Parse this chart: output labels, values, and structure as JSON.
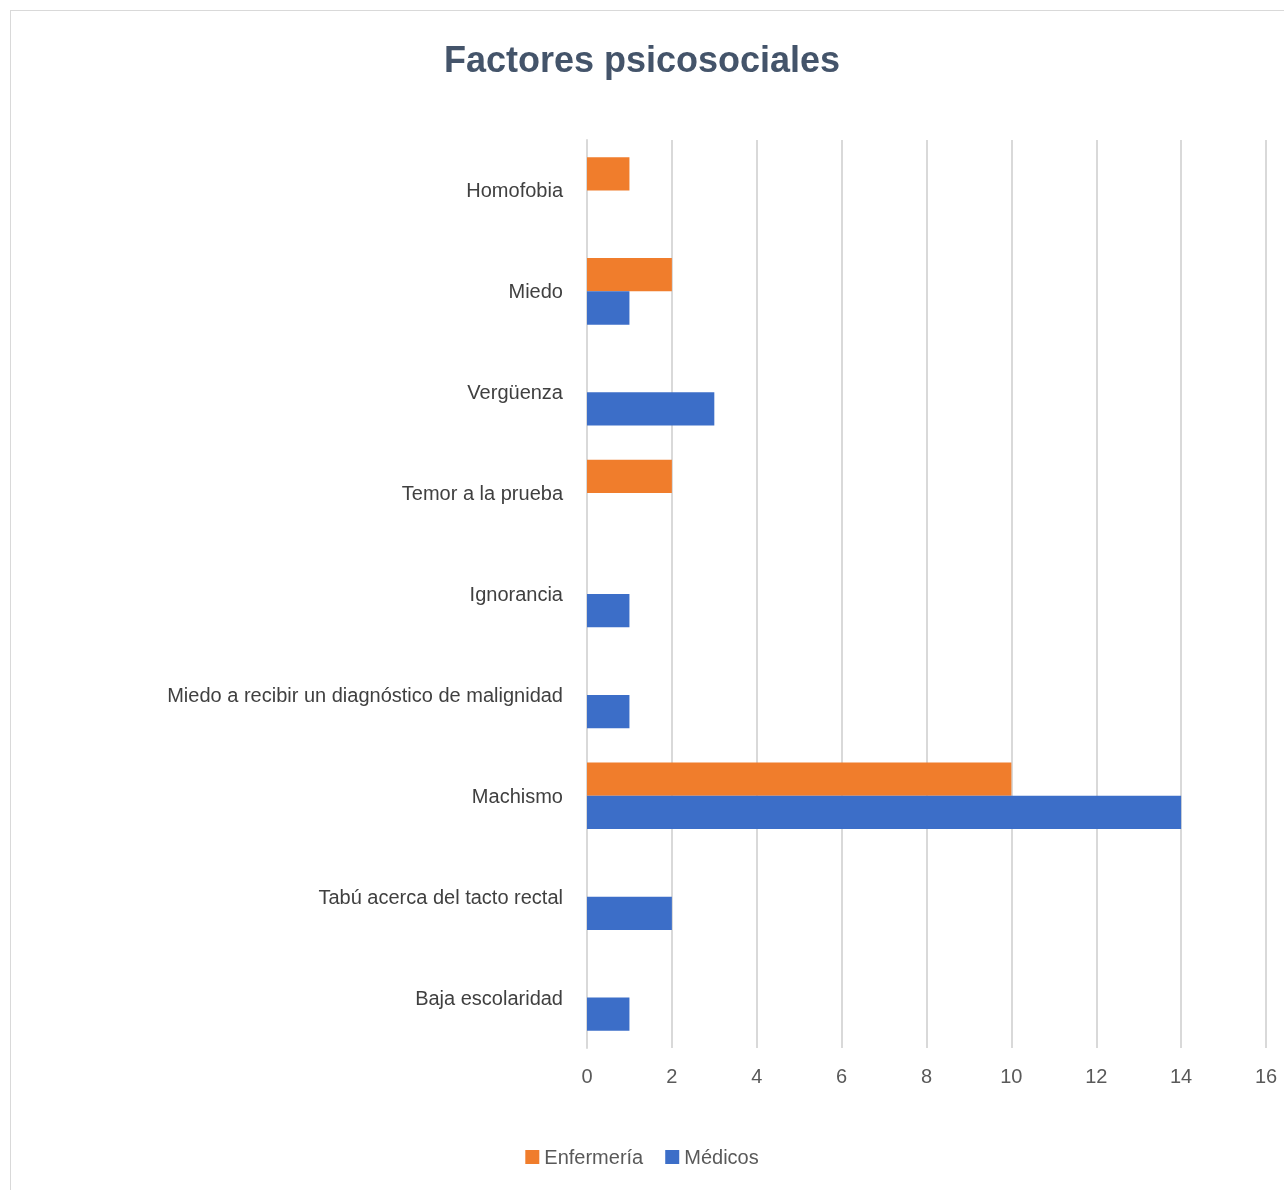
{
  "chart_data": {
    "type": "bar",
    "orientation": "horizontal",
    "title": "Factores psicosociales",
    "categories": [
      "Homofobia",
      "Miedo",
      "Vergüenza",
      "Temor a la prueba",
      "Ignorancia",
      "Miedo a recibir un diagnóstico de malignidad",
      "Machismo",
      "Tabú acerca del tacto rectal",
      "Baja escolaridad"
    ],
    "series": [
      {
        "name": "Enfermería",
        "color": "#f07d2c",
        "values": [
          1,
          2,
          null,
          2,
          null,
          null,
          10,
          null,
          null
        ]
      },
      {
        "name": "Médicos",
        "color": "#3c6ec8",
        "values": [
          null,
          1,
          3,
          null,
          1,
          1,
          14,
          2,
          1
        ]
      }
    ],
    "xlim": [
      0,
      16
    ],
    "xticks": [
      0,
      2,
      4,
      6,
      8,
      10,
      12,
      14,
      16
    ],
    "grid": "x",
    "legend": "bottom"
  }
}
